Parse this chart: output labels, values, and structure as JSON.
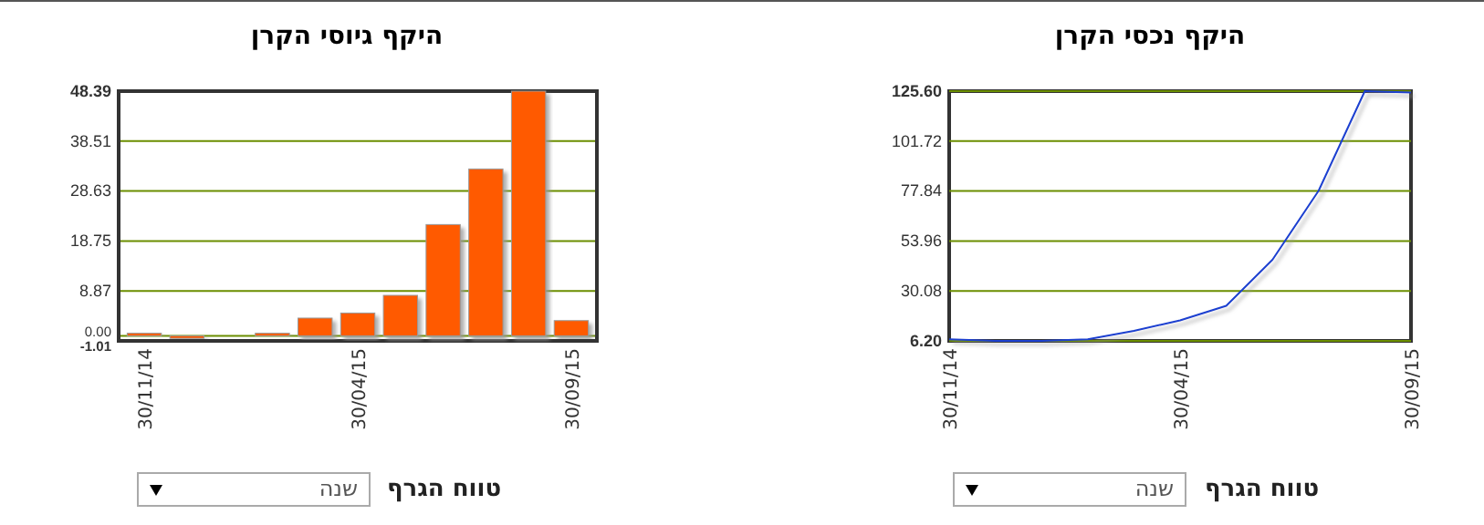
{
  "chart_data": [
    {
      "type": "bar",
      "title": "היקף גיוסי הקרן",
      "categories": [
        "30/11/14",
        null,
        null,
        null,
        null,
        "30/04/15",
        null,
        null,
        null,
        null,
        "30/09/15"
      ],
      "values": [
        0.5,
        -0.5,
        0,
        0.5,
        3.5,
        4.5,
        8,
        22,
        33,
        48.39,
        3
      ],
      "color": "#ff5a00",
      "ylim": [
        -1.01,
        48.39
      ],
      "yticks": [
        -1.01,
        {
          "value": 0,
          "label": "0.00"
        },
        8.87,
        18.75,
        28.63,
        38.51,
        {
          "value": 48.39,
          "label": "48.39"
        }
      ],
      "grid": "y",
      "annotations": [
        "טווח הגרף",
        "שנה"
      ]
    },
    {
      "type": "line",
      "title": "היקף נכסי הקרן",
      "categories": [
        "30/11/14",
        null,
        null,
        null,
        null,
        "30/04/15",
        null,
        null,
        null,
        null,
        "30/09/15"
      ],
      "values": [
        7,
        6.2,
        6.2,
        7,
        11,
        16,
        23,
        45,
        78,
        125.6,
        125
      ],
      "color": "#1a3fd0",
      "ylim": [
        6.2,
        125.6
      ],
      "yticks": [
        {
          "value": 6.2,
          "label": "6.20"
        },
        30.08,
        53.96,
        77.84,
        101.72,
        {
          "value": 125.6,
          "label": "125.60"
        }
      ],
      "grid": "y",
      "annotations": [
        "טווח הגרף",
        "שנה"
      ]
    }
  ]
}
